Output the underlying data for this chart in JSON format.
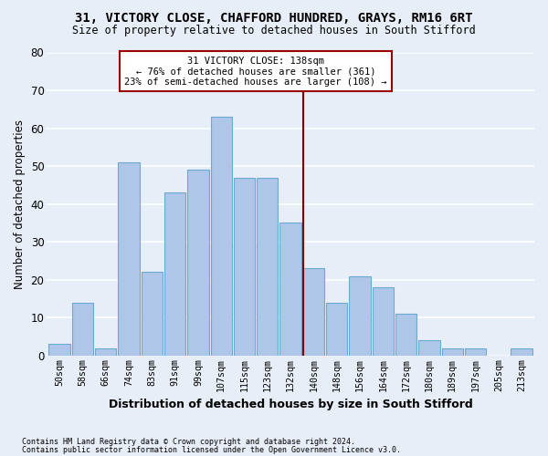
{
  "title1": "31, VICTORY CLOSE, CHAFFORD HUNDRED, GRAYS, RM16 6RT",
  "title2": "Size of property relative to detached houses in South Stifford",
  "xlabel": "Distribution of detached houses by size in South Stifford",
  "ylabel": "Number of detached properties",
  "footnote1": "Contains HM Land Registry data © Crown copyright and database right 2024.",
  "footnote2": "Contains public sector information licensed under the Open Government Licence v3.0.",
  "bar_labels": [
    "50sqm",
    "58sqm",
    "66sqm",
    "74sqm",
    "83sqm",
    "91sqm",
    "99sqm",
    "107sqm",
    "115sqm",
    "123sqm",
    "132sqm",
    "140sqm",
    "148sqm",
    "156sqm",
    "164sqm",
    "172sqm",
    "180sqm",
    "189sqm",
    "197sqm",
    "205sqm",
    "213sqm"
  ],
  "bar_values": [
    3,
    14,
    2,
    51,
    22,
    43,
    49,
    63,
    47,
    47,
    35,
    23,
    14,
    21,
    18,
    11,
    4,
    2,
    2,
    0,
    2
  ],
  "bar_color": "#aec6e8",
  "bar_edge_color": "#6aaad4",
  "bg_color": "#e8eef8",
  "grid_color": "#ffffff",
  "annotation_line1": "31 VICTORY CLOSE: 138sqm",
  "annotation_line2": "← 76% of detached houses are smaller (361)",
  "annotation_line3": "23% of semi-detached houses are larger (108) →",
  "annotation_box_edgecolor": "#990000",
  "ylim": [
    0,
    80
  ],
  "yticks": [
    0,
    10,
    20,
    30,
    40,
    50,
    60,
    70,
    80
  ],
  "vline_index": 11
}
